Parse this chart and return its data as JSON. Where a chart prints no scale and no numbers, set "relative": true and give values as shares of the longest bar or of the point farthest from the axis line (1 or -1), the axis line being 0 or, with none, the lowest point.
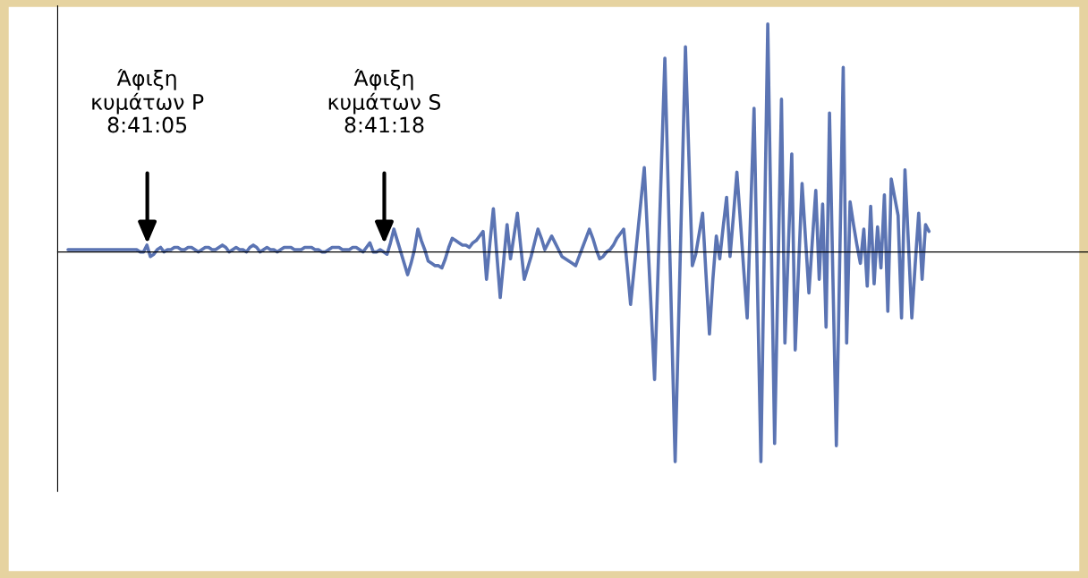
{
  "chart_data": {
    "type": "line",
    "relative": true,
    "line_style": "solid",
    "categories": [
      null,
      null,
      null,
      null,
      null,
      null,
      null,
      null,
      null,
      null,
      null,
      null,
      null,
      null,
      null,
      null,
      null,
      null,
      null,
      null,
      null,
      null,
      null,
      null,
      null,
      null,
      null,
      null,
      null,
      null,
      null,
      null,
      null,
      null,
      null,
      null,
      null,
      null,
      null,
      null,
      null,
      null,
      null,
      null,
      null,
      null,
      null,
      null,
      null,
      null,
      null,
      null,
      null,
      null,
      null,
      null,
      null,
      null,
      null,
      null,
      null,
      null,
      null,
      null,
      null,
      null,
      null,
      null,
      null,
      null,
      null,
      null,
      null,
      null,
      null,
      null,
      null,
      null,
      null,
      null,
      null,
      null,
      null,
      null,
      null,
      null,
      null,
      null,
      null,
      null,
      null,
      null,
      null,
      null,
      null,
      null,
      null,
      null,
      null,
      null,
      null,
      null,
      null,
      null,
      null,
      null,
      null,
      null,
      null,
      null,
      null,
      null,
      null,
      null,
      null,
      null,
      null,
      null,
      null,
      null,
      null,
      null,
      null,
      null,
      null,
      null,
      null,
      null,
      null,
      null,
      null,
      null,
      null,
      null,
      null,
      null,
      null,
      null,
      null,
      null,
      null,
      null,
      null,
      null,
      null,
      null,
      null,
      null,
      null,
      null,
      null,
      null,
      null,
      null,
      null,
      null,
      null,
      null,
      null,
      null,
      null,
      null,
      null,
      null,
      null,
      null,
      null,
      null,
      null,
      null,
      null,
      null,
      null,
      null,
      null,
      null,
      null,
      null,
      null,
      null,
      null,
      null,
      null,
      null,
      null,
      null,
      null,
      null,
      null,
      null,
      null,
      null,
      null,
      null,
      null,
      null,
      null,
      null,
      null,
      null,
      null,
      null,
      null,
      null,
      null,
      null,
      null,
      null,
      null,
      null,
      null,
      null,
      null,
      null,
      null,
      null,
      null,
      null,
      null,
      null,
      null,
      null,
      null,
      null,
      null,
      null,
      null,
      null,
      null,
      null,
      null,
      null,
      null,
      null,
      null,
      null,
      null,
      null,
      null,
      null,
      null,
      null,
      null,
      null,
      null,
      null,
      null,
      null,
      null,
      null,
      null,
      null
    ],
    "series": [
      {
        "color": "#5b74b3",
        "values": [
          0.01,
          0.01,
          0.01,
          0.01,
          0.01,
          0.01,
          0.01,
          0.01,
          0.01,
          0.01,
          0.01,
          0.01,
          0.01,
          0.01,
          0.01,
          0.01,
          0.01,
          0.01,
          0.01,
          0.01,
          0.01,
          0,
          0,
          0.03,
          -0.02,
          -0.01,
          0.01,
          0.02,
          0,
          0.01,
          0.01,
          0.02,
          0.02,
          0.01,
          0.01,
          0.02,
          0.02,
          0.01,
          0,
          0.01,
          0.02,
          0.02,
          0.01,
          0.01,
          0.02,
          0.03,
          0.02,
          0,
          0.01,
          0.02,
          0.01,
          0.01,
          0,
          0.02,
          0.03,
          0.02,
          0,
          0.01,
          0.02,
          0.01,
          0.01,
          0,
          0.01,
          0.02,
          0.02,
          0.02,
          0.01,
          0.01,
          0.01,
          0.02,
          0.02,
          0.02,
          0.01,
          0.01,
          0,
          0,
          0.01,
          0.02,
          0.02,
          0.02,
          0.01,
          0.01,
          0.01,
          0.02,
          0.02,
          0.01,
          0,
          0.02,
          0.04,
          0,
          0,
          0.01,
          0,
          -0.01,
          0.04,
          0.1,
          0.05,
          0,
          -0.05,
          -0.1,
          -0.05,
          0.01,
          0.1,
          0.05,
          0.01,
          -0.04,
          -0.05,
          -0.06,
          -0.06,
          -0.07,
          -0.03,
          0.02,
          0.06,
          0.05,
          0.04,
          0.03,
          0.03,
          0.02,
          0.04,
          0.05,
          0.07,
          0.09,
          -0.12,
          0.04,
          0.19,
          -0.01,
          -0.2,
          -0.04,
          0.12,
          -0.03,
          0.07,
          0.17,
          0.02,
          -0.12,
          -0.07,
          -0.02,
          0.04,
          0.1,
          0.06,
          0.01,
          0.04,
          0.07,
          0.04,
          0.01,
          -0.02,
          -0.03,
          -0.04,
          -0.05,
          -0.06,
          -0.02,
          0.02,
          0.06,
          0.1,
          0.06,
          0.01,
          -0.03,
          -0.02,
          0,
          0.01,
          0.03,
          0.06,
          0.08,
          0.1,
          -0.06,
          -0.23,
          -0.08,
          0.07,
          0.22,
          0.37,
          0.06,
          -0.25,
          -0.56,
          -0.09,
          0.38,
          0.85,
          0.26,
          -0.33,
          -0.92,
          -0.31,
          0.29,
          0.9,
          0.42,
          -0.06,
          -0.01,
          0.08,
          0.17,
          -0.1,
          -0.36,
          -0.12,
          0.07,
          -0.03,
          0.11,
          0.24,
          -0.02,
          0.16,
          0.35,
          0.14,
          -0.08,
          -0.29,
          0.17,
          0.63,
          -0.15,
          -0.92,
          0.04,
          1,
          0.08,
          -0.84,
          -0.08,
          0.67,
          -0.4,
          0.02,
          0.43,
          -0.43,
          -0.06,
          0.3,
          0.06,
          -0.18,
          0.05,
          0.27,
          -0.12,
          0.21,
          -0.33,
          0.61,
          -0.12,
          -0.85,
          -0.02,
          0.81,
          -0.4,
          0.22,
          0.12,
          0.03,
          -0.05,
          0.1,
          -0.15,
          0.2,
          -0.14,
          0.11,
          -0.07,
          0.25,
          -0.26,
          0.32,
          0.24,
          0.16,
          -0.29,
          0.36,
          0.04,
          -0.29,
          -0.05,
          0.17,
          -0.12,
          0.12,
          0.09
        ]
      }
    ],
    "annotations": [
      "Άφιξη\nκυμάτων P\n8:41:05",
      "Άφιξη\nκυμάτων S\n8:41:18"
    ]
  }
}
